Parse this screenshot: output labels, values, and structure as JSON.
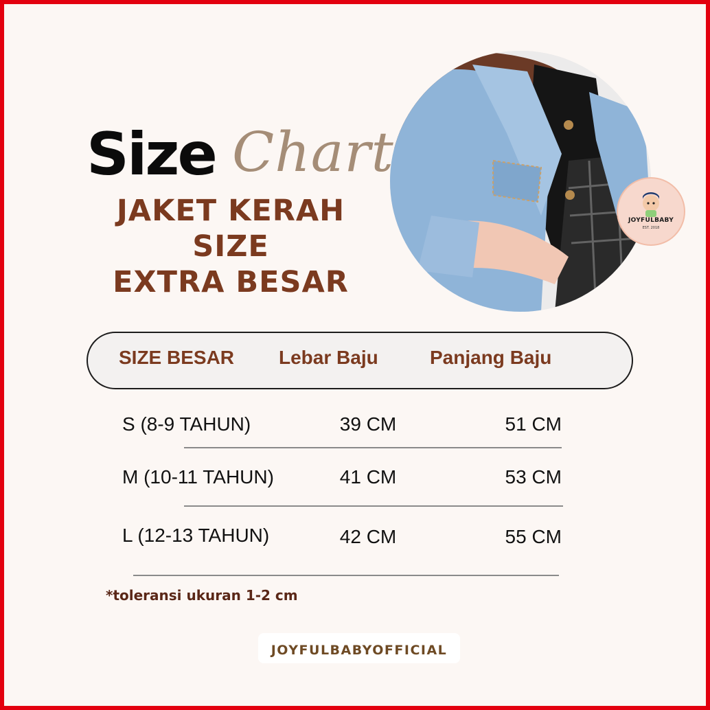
{
  "title": {
    "size_word": "Size",
    "chart_word": "Chart",
    "product_lines": [
      "JAKET KERAH",
      "SIZE",
      "EXTRA BESAR"
    ]
  },
  "logo": {
    "text": "JOYFULBABY",
    "sub": "EST. 2018"
  },
  "table": {
    "headers": [
      "SIZE BESAR",
      "Lebar Baju",
      "Panjang Baju"
    ],
    "rows": [
      {
        "size": "S (8-9 TAHUN)",
        "lebar": "39 CM",
        "panjang": "51 CM"
      },
      {
        "size": "M (10-11 TAHUN)",
        "lebar": "41 CM",
        "panjang": "53 CM"
      },
      {
        "size": "L (12-13 TAHUN)",
        "lebar": "42 CM",
        "panjang": "55 CM"
      }
    ]
  },
  "note": "*toleransi ukuran 1-2 cm",
  "footer": "JOYFULBABYOFFICIAL",
  "colors": {
    "border": "#e3000f",
    "background": "#fcf7f4",
    "brown": "#7b3a1f",
    "chart_script": "#a58d77",
    "denim": "#8fb4d8"
  }
}
